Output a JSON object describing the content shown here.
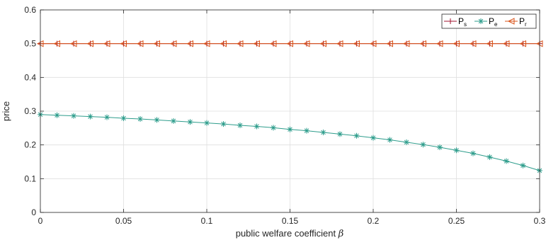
{
  "chart_data": {
    "type": "line",
    "title": "",
    "xlabel": "public welfare coefficient",
    "xlabel_symbol": "β",
    "ylabel": "price",
    "xlim": [
      0,
      0.3
    ],
    "ylim": [
      0,
      0.6
    ],
    "xticks": [
      "0",
      "0.05",
      "0.1",
      "0.15",
      "0.2",
      "0.25",
      "0.3"
    ],
    "yticks": [
      "0",
      "0.1",
      "0.2",
      "0.3",
      "0.4",
      "0.5",
      "0.6"
    ],
    "grid": true,
    "legend_position": "top-right",
    "x": [
      0,
      0.01,
      0.02,
      0.03,
      0.04,
      0.05,
      0.06,
      0.07,
      0.08,
      0.09,
      0.1,
      0.11,
      0.12,
      0.13,
      0.14,
      0.15,
      0.16,
      0.17,
      0.18,
      0.19,
      0.2,
      0.21,
      0.22,
      0.23,
      0.24,
      0.25,
      0.26,
      0.27,
      0.28,
      0.29,
      0.3
    ],
    "series": [
      {
        "name": "P",
        "subscript": "s",
        "color": "#a2142f",
        "marker": "plus",
        "values": [
          0.5,
          0.5,
          0.5,
          0.5,
          0.5,
          0.5,
          0.5,
          0.5,
          0.5,
          0.5,
          0.5,
          0.5,
          0.5,
          0.5,
          0.5,
          0.5,
          0.5,
          0.5,
          0.5,
          0.5,
          0.5,
          0.5,
          0.5,
          0.5,
          0.5,
          0.5,
          0.5,
          0.5,
          0.5,
          0.5,
          0.5
        ]
      },
      {
        "name": "P",
        "subscript": "e",
        "color": "#2e9d8c",
        "marker": "asterisk",
        "values": [
          0.29,
          0.288,
          0.286,
          0.284,
          0.282,
          0.279,
          0.277,
          0.274,
          0.271,
          0.268,
          0.265,
          0.262,
          0.258,
          0.255,
          0.251,
          0.246,
          0.242,
          0.237,
          0.232,
          0.227,
          0.221,
          0.215,
          0.208,
          0.201,
          0.193,
          0.184,
          0.175,
          0.164,
          0.152,
          0.139,
          0.124
        ]
      },
      {
        "name": "P",
        "subscript": "r",
        "color": "#d95319",
        "marker": "triangle-left",
        "values": [
          0.5,
          0.5,
          0.5,
          0.5,
          0.5,
          0.5,
          0.5,
          0.5,
          0.5,
          0.5,
          0.5,
          0.5,
          0.5,
          0.5,
          0.5,
          0.5,
          0.5,
          0.5,
          0.5,
          0.5,
          0.5,
          0.5,
          0.5,
          0.5,
          0.5,
          0.5,
          0.5,
          0.5,
          0.5,
          0.5,
          0.5
        ]
      }
    ]
  }
}
